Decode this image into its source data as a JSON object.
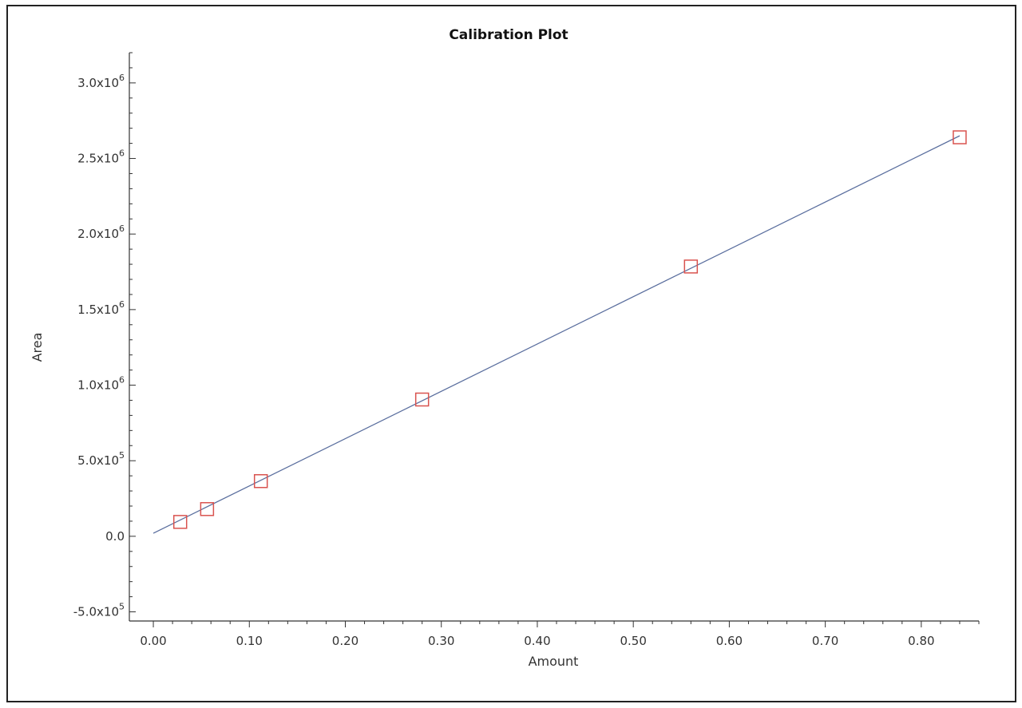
{
  "chart_data": {
    "type": "scatter",
    "title": "Calibration Plot",
    "xlabel": "Amount",
    "ylabel": "Area",
    "xlim": [
      -0.02,
      0.86
    ],
    "ylim": [
      -550000,
      3200000
    ],
    "x_ticks": [
      "0.00",
      "0.10",
      "0.20",
      "0.30",
      "0.40",
      "0.50",
      "0.60",
      "0.70",
      "0.80"
    ],
    "x_tick_values": [
      0,
      0.1,
      0.2,
      0.3,
      0.4,
      0.5,
      0.6,
      0.7,
      0.8
    ],
    "y_ticks": [
      {
        "value": -500000,
        "mantissa": "-5.0x10",
        "exp": "5"
      },
      {
        "value": 0,
        "mantissa": "0.0",
        "exp": ""
      },
      {
        "value": 500000,
        "mantissa": "5.0x10",
        "exp": "5"
      },
      {
        "value": 1000000,
        "mantissa": "1.0x10",
        "exp": "6"
      },
      {
        "value": 1500000,
        "mantissa": "1.5x10",
        "exp": "6"
      },
      {
        "value": 2000000,
        "mantissa": "2.0x10",
        "exp": "6"
      },
      {
        "value": 2500000,
        "mantissa": "2.5x10",
        "exp": "6"
      },
      {
        "value": 3000000,
        "mantissa": "3.0x10",
        "exp": "6"
      }
    ],
    "grid": false,
    "series": [
      {
        "x": [
          0.028,
          0.056,
          0.112,
          0.28,
          0.56,
          0.84
        ],
        "y": [
          95000,
          180000,
          365000,
          905000,
          1785000,
          2640000
        ],
        "marker": "square-open",
        "color": "#d9534f"
      }
    ],
    "fit_line": {
      "x": [
        0.0,
        0.84
      ],
      "y": [
        20000,
        2650000
      ],
      "color": "#5a6e9e"
    }
  }
}
